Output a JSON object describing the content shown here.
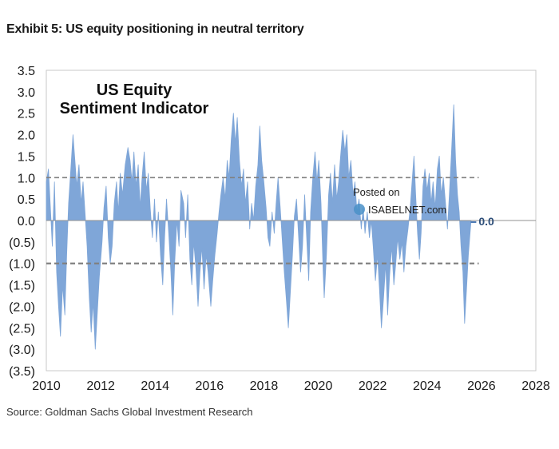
{
  "header": {
    "exhibit_title": "Exhibit 5: US equity positioning in neutral territory"
  },
  "footer": {
    "source": "Source: Goldman Sachs Global Investment Research"
  },
  "watermark": {
    "line1": "Posted on",
    "line2": "ISABELNET.com"
  },
  "colors": {
    "series": "#7fa6d8",
    "threshold": "#808080",
    "zero_line": "#909090",
    "last_marker": "#4d7ab5"
  },
  "chart_data": {
    "type": "area",
    "title": "US Equity Sentiment Indicator",
    "title_lines": [
      "US Equity",
      "Sentiment Indicator"
    ],
    "xlabel": "",
    "ylabel": "",
    "xlim": [
      2010,
      2028
    ],
    "ylim": [
      -3.5,
      3.5
    ],
    "x_ticks": [
      2010,
      2012,
      2014,
      2016,
      2018,
      2020,
      2022,
      2024,
      2026,
      2028
    ],
    "x_tick_labels": [
      "2010",
      "2012",
      "2014",
      "2016",
      "2018",
      "2020",
      "2022",
      "2024",
      "2026",
      "2028"
    ],
    "y_ticks": [
      3.5,
      3.0,
      2.5,
      2.0,
      1.5,
      1.0,
      0.5,
      0.0,
      -0.5,
      -1.0,
      -1.5,
      -2.0,
      -2.5,
      -3.0,
      -3.5
    ],
    "y_tick_labels": [
      "3.5",
      "3.0",
      "2.5",
      "2.0",
      "1.5",
      "1.0",
      "0.5",
      "0.0",
      "(0.5)",
      "(1.0)",
      "(1.5)",
      "(2.0)",
      "(2.5)",
      "(3.0)",
      "(3.5)"
    ],
    "grid": false,
    "reference_lines": [
      {
        "y": 1.0,
        "style": "dashed"
      },
      {
        "y": -1.0,
        "style": "dashed"
      },
      {
        "y": 0.0,
        "style": "solid"
      }
    ],
    "last_value_label": "0.0",
    "last_value": 0.0,
    "series": [
      {
        "values": [
          [
            2010.0,
            0.9
          ],
          [
            2010.08,
            1.2
          ],
          [
            2010.15,
            0.3
          ],
          [
            2010.22,
            -0.6
          ],
          [
            2010.3,
            0.9
          ],
          [
            2010.38,
            -1.2
          ],
          [
            2010.45,
            -2.0
          ],
          [
            2010.52,
            -2.7
          ],
          [
            2010.6,
            -1.5
          ],
          [
            2010.68,
            -2.2
          ],
          [
            2010.75,
            -0.8
          ],
          [
            2010.82,
            0.4
          ],
          [
            2010.9,
            1.2
          ],
          [
            2010.98,
            2.0
          ],
          [
            2011.05,
            1.4
          ],
          [
            2011.12,
            0.8
          ],
          [
            2011.2,
            1.3
          ],
          [
            2011.28,
            0.4
          ],
          [
            2011.35,
            0.9
          ],
          [
            2011.42,
            0.2
          ],
          [
            2011.5,
            -0.6
          ],
          [
            2011.58,
            -1.8
          ],
          [
            2011.65,
            -2.6
          ],
          [
            2011.72,
            -1.9
          ],
          [
            2011.8,
            -3.0
          ],
          [
            2011.88,
            -2.1
          ],
          [
            2011.95,
            -1.3
          ],
          [
            2012.05,
            -0.5
          ],
          [
            2012.12,
            0.3
          ],
          [
            2012.2,
            0.8
          ],
          [
            2012.28,
            -0.4
          ],
          [
            2012.35,
            -1.0
          ],
          [
            2012.42,
            -0.6
          ],
          [
            2012.5,
            0.4
          ],
          [
            2012.58,
            0.9
          ],
          [
            2012.65,
            0.2
          ],
          [
            2012.72,
            1.1
          ],
          [
            2012.8,
            0.6
          ],
          [
            2012.9,
            1.3
          ],
          [
            2013.0,
            1.7
          ],
          [
            2013.08,
            1.4
          ],
          [
            2013.15,
            0.9
          ],
          [
            2013.22,
            1.6
          ],
          [
            2013.3,
            0.8
          ],
          [
            2013.38,
            1.3
          ],
          [
            2013.45,
            0.3
          ],
          [
            2013.52,
            1.0
          ],
          [
            2013.6,
            1.6
          ],
          [
            2013.68,
            0.7
          ],
          [
            2013.75,
            1.1
          ],
          [
            2013.82,
            0.3
          ],
          [
            2013.9,
            -0.4
          ],
          [
            2013.98,
            0.5
          ],
          [
            2014.05,
            -0.5
          ],
          [
            2014.12,
            0.2
          ],
          [
            2014.2,
            -0.8
          ],
          [
            2014.28,
            -1.5
          ],
          [
            2014.35,
            -0.4
          ],
          [
            2014.42,
            0.5
          ],
          [
            2014.5,
            -0.3
          ],
          [
            2014.58,
            -1.2
          ],
          [
            2014.65,
            -2.2
          ],
          [
            2014.72,
            -1.0
          ],
          [
            2014.8,
            0.0
          ],
          [
            2014.88,
            -0.6
          ],
          [
            2014.95,
            0.7
          ],
          [
            2015.05,
            0.4
          ],
          [
            2015.12,
            -0.4
          ],
          [
            2015.2,
            0.6
          ],
          [
            2015.28,
            -0.9
          ],
          [
            2015.35,
            -1.5
          ],
          [
            2015.42,
            -0.5
          ],
          [
            2015.5,
            -1.1
          ],
          [
            2015.58,
            -2.0
          ],
          [
            2015.65,
            -1.2
          ],
          [
            2015.72,
            -0.6
          ],
          [
            2015.8,
            -1.6
          ],
          [
            2015.88,
            -0.8
          ],
          [
            2015.95,
            -1.2
          ],
          [
            2016.05,
            -2.0
          ],
          [
            2016.12,
            -1.4
          ],
          [
            2016.2,
            -0.8
          ],
          [
            2016.28,
            -0.3
          ],
          [
            2016.35,
            0.2
          ],
          [
            2016.42,
            0.6
          ],
          [
            2016.5,
            1.0
          ],
          [
            2016.58,
            0.5
          ],
          [
            2016.65,
            1.4
          ],
          [
            2016.72,
            1.0
          ],
          [
            2016.8,
            1.9
          ],
          [
            2016.88,
            2.5
          ],
          [
            2016.95,
            1.8
          ],
          [
            2017.02,
            2.4
          ],
          [
            2017.1,
            1.4
          ],
          [
            2017.18,
            0.8
          ],
          [
            2017.25,
            1.2
          ],
          [
            2017.32,
            0.4
          ],
          [
            2017.4,
            0.9
          ],
          [
            2017.48,
            -0.2
          ],
          [
            2017.55,
            0.4
          ],
          [
            2017.62,
            0.0
          ],
          [
            2017.7,
            0.8
          ],
          [
            2017.78,
            1.3
          ],
          [
            2017.85,
            2.2
          ],
          [
            2017.92,
            1.4
          ],
          [
            2018.0,
            0.9
          ],
          [
            2018.08,
            0.3
          ],
          [
            2018.15,
            -0.4
          ],
          [
            2018.22,
            -0.6
          ],
          [
            2018.3,
            0.2
          ],
          [
            2018.38,
            -0.3
          ],
          [
            2018.45,
            0.4
          ],
          [
            2018.52,
            1.0
          ],
          [
            2018.6,
            0.3
          ],
          [
            2018.68,
            -0.5
          ],
          [
            2018.75,
            -1.2
          ],
          [
            2018.82,
            -1.8
          ],
          [
            2018.9,
            -2.5
          ],
          [
            2018.98,
            -1.6
          ],
          [
            2019.05,
            -0.8
          ],
          [
            2019.12,
            0.1
          ],
          [
            2019.2,
            0.5
          ],
          [
            2019.28,
            -0.4
          ],
          [
            2019.35,
            -1.2
          ],
          [
            2019.42,
            -0.6
          ],
          [
            2019.5,
            0.6
          ],
          [
            2019.58,
            -0.5
          ],
          [
            2019.65,
            -1.4
          ],
          [
            2019.72,
            0.2
          ],
          [
            2019.8,
            1.0
          ],
          [
            2019.88,
            1.6
          ],
          [
            2019.95,
            0.9
          ],
          [
            2020.02,
            1.4
          ],
          [
            2020.1,
            0.4
          ],
          [
            2020.18,
            -1.2
          ],
          [
            2020.22,
            -1.8
          ],
          [
            2020.3,
            -0.8
          ],
          [
            2020.38,
            0.6
          ],
          [
            2020.45,
            1.1
          ],
          [
            2020.52,
            0.4
          ],
          [
            2020.6,
            1.3
          ],
          [
            2020.68,
            0.5
          ],
          [
            2020.75,
            0.9
          ],
          [
            2020.82,
            1.5
          ],
          [
            2020.9,
            2.1
          ],
          [
            2020.98,
            1.6
          ],
          [
            2021.05,
            2.0
          ],
          [
            2021.12,
            1.0
          ],
          [
            2021.2,
            1.4
          ],
          [
            2021.28,
            0.6
          ],
          [
            2021.35,
            0.9
          ],
          [
            2021.42,
            0.2
          ],
          [
            2021.5,
            0.5
          ],
          [
            2021.58,
            -0.2
          ],
          [
            2021.65,
            0.3
          ],
          [
            2021.72,
            -0.3
          ],
          [
            2021.8,
            0.2
          ],
          [
            2021.88,
            -0.4
          ],
          [
            2021.95,
            0.0
          ],
          [
            2022.02,
            -0.6
          ],
          [
            2022.1,
            -1.4
          ],
          [
            2022.18,
            -0.8
          ],
          [
            2022.25,
            -1.6
          ],
          [
            2022.32,
            -2.5
          ],
          [
            2022.4,
            -1.8
          ],
          [
            2022.48,
            -1.0
          ],
          [
            2022.55,
            -2.2
          ],
          [
            2022.62,
            -1.3
          ],
          [
            2022.7,
            -0.6
          ],
          [
            2022.78,
            -1.5
          ],
          [
            2022.85,
            -1.0
          ],
          [
            2022.92,
            -0.4
          ],
          [
            2023.0,
            -0.9
          ],
          [
            2023.08,
            -0.5
          ],
          [
            2023.15,
            -1.2
          ],
          [
            2023.22,
            -0.6
          ],
          [
            2023.3,
            -0.2
          ],
          [
            2023.38,
            0.3
          ],
          [
            2023.45,
            0.9
          ],
          [
            2023.52,
            1.5
          ],
          [
            2023.58,
            0.6
          ],
          [
            2023.65,
            -0.3
          ],
          [
            2023.72,
            -0.9
          ],
          [
            2023.78,
            -0.3
          ],
          [
            2023.85,
            0.8
          ],
          [
            2023.92,
            1.2
          ],
          [
            2024.0,
            0.7
          ],
          [
            2024.08,
            1.1
          ],
          [
            2024.15,
            0.4
          ],
          [
            2024.22,
            0.9
          ],
          [
            2024.3,
            0.3
          ],
          [
            2024.38,
            1.2
          ],
          [
            2024.45,
            1.5
          ],
          [
            2024.52,
            0.6
          ],
          [
            2024.6,
            1.0
          ],
          [
            2024.68,
            0.4
          ],
          [
            2024.75,
            -0.2
          ],
          [
            2024.82,
            0.6
          ],
          [
            2024.9,
            1.6
          ],
          [
            2024.98,
            2.7
          ],
          [
            2025.05,
            1.4
          ],
          [
            2025.12,
            0.6
          ],
          [
            2025.18,
            0.2
          ],
          [
            2025.25,
            -0.6
          ],
          [
            2025.32,
            -1.2
          ],
          [
            2025.38,
            -2.4
          ],
          [
            2025.45,
            -1.6
          ],
          [
            2025.52,
            -0.8
          ],
          [
            2025.58,
            -0.3
          ],
          [
            2025.62,
            0.0
          ]
        ]
      }
    ]
  }
}
